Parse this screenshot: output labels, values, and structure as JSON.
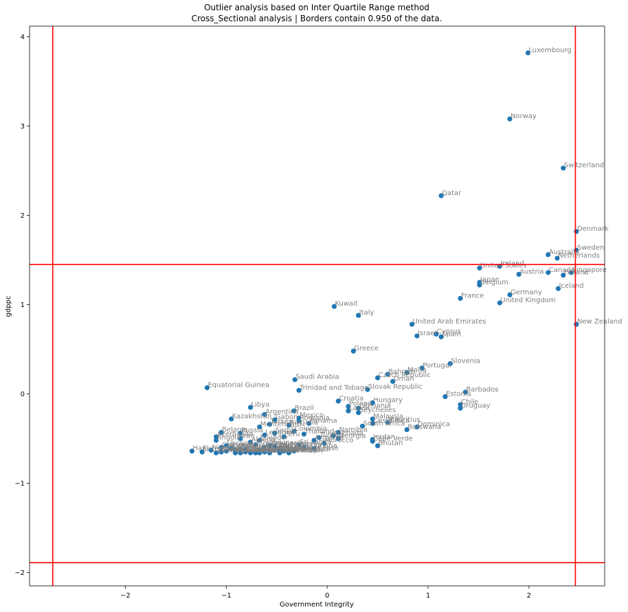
{
  "chart_data": {
    "type": "scatter",
    "title": "Outlier analysis based on Inter Quartile Range method",
    "subtitle": "Cross_Sectional analysis | Borders contain 0.950 of the data.",
    "xlabel": "Government Integrity",
    "ylabel": "gdppc",
    "xlim": [
      -2.95,
      2.75
    ],
    "ylim": [
      -2.15,
      4.12
    ],
    "xticks": [
      -2,
      -1,
      0,
      1,
      2
    ],
    "yticks": [
      -2,
      -1,
      0,
      1,
      2,
      3,
      4
    ],
    "x_tick_labels": [
      "−2",
      "−1",
      "0",
      "1",
      "2"
    ],
    "y_tick_labels": [
      "−2",
      "−1",
      "0",
      "1",
      "2",
      "3",
      "4"
    ],
    "grid": false,
    "point_color": "#1f77b4",
    "border_color": "#ff0000",
    "label_color": "#808080",
    "borders": {
      "x_low": -2.72,
      "x_high": 2.46,
      "y_low": -1.89,
      "y_high": 1.45
    },
    "points": [
      {
        "label": "Luxembourg",
        "x": 1.99,
        "y": 3.82
      },
      {
        "label": "Norway",
        "x": 1.81,
        "y": 3.08
      },
      {
        "label": "Switzerland",
        "x": 2.34,
        "y": 2.53
      },
      {
        "label": "Qatar",
        "x": 1.13,
        "y": 2.22
      },
      {
        "label": "Denmark",
        "x": 2.47,
        "y": 1.82
      },
      {
        "label": "Sweden",
        "x": 2.47,
        "y": 1.61
      },
      {
        "label": "Australia",
        "x": 2.19,
        "y": 1.56
      },
      {
        "label": "Netherlands",
        "x": 2.28,
        "y": 1.52
      },
      {
        "label": "Ireland",
        "x": 1.71,
        "y": 1.43
      },
      {
        "label": "United States",
        "x": 1.51,
        "y": 1.41
      },
      {
        "label": "Canada",
        "x": 2.19,
        "y": 1.36
      },
      {
        "label": "Singapore",
        "x": 2.42,
        "y": 1.36
      },
      {
        "label": "Finland",
        "x": 2.34,
        "y": 1.33
      },
      {
        "label": "Austria",
        "x": 1.9,
        "y": 1.34
      },
      {
        "label": "Japan",
        "x": 1.51,
        "y": 1.25
      },
      {
        "label": "Belgium",
        "x": 1.51,
        "y": 1.22
      },
      {
        "label": "Iceland",
        "x": 2.29,
        "y": 1.18
      },
      {
        "label": "Germany",
        "x": 1.81,
        "y": 1.11
      },
      {
        "label": "France",
        "x": 1.32,
        "y": 1.07
      },
      {
        "label": "United Kingdom",
        "x": 1.71,
        "y": 1.02
      },
      {
        "label": "Kuwait",
        "x": 0.07,
        "y": 0.98
      },
      {
        "label": "Italy",
        "x": 0.31,
        "y": 0.88
      },
      {
        "label": "New Zealand",
        "x": 2.47,
        "y": 0.78
      },
      {
        "label": "United Arab Emirates",
        "x": 0.84,
        "y": 0.78
      },
      {
        "label": "Cyprus",
        "x": 1.08,
        "y": 0.67
      },
      {
        "label": "Israel",
        "x": 0.89,
        "y": 0.65
      },
      {
        "label": "Spain",
        "x": 1.13,
        "y": 0.64
      },
      {
        "label": "Greece",
        "x": 0.26,
        "y": 0.48
      },
      {
        "label": "Slovenia",
        "x": 1.22,
        "y": 0.34
      },
      {
        "label": "Portugal",
        "x": 0.94,
        "y": 0.29
      },
      {
        "label": "Malta",
        "x": 0.79,
        "y": 0.24
      },
      {
        "label": "Bahrain",
        "x": 0.6,
        "y": 0.22
      },
      {
        "label": "Czech Republic",
        "x": 0.5,
        "y": 0.18
      },
      {
        "label": "Oman",
        "x": 0.65,
        "y": 0.14
      },
      {
        "label": "Saudi Arabia",
        "x": -0.32,
        "y": 0.16
      },
      {
        "label": "Equatorial Guinea",
        "x": -1.19,
        "y": 0.07
      },
      {
        "label": "Trinidad and Tobago",
        "x": -0.28,
        "y": 0.04
      },
      {
        "label": "Slovak Republic",
        "x": 0.4,
        "y": 0.05
      },
      {
        "label": "Barbados",
        "x": 1.37,
        "y": 0.02
      },
      {
        "label": "Estonia",
        "x": 1.17,
        "y": -0.03
      },
      {
        "label": "Croatia",
        "x": 0.11,
        "y": -0.08
      },
      {
        "label": "Hungary",
        "x": 0.45,
        "y": -0.1
      },
      {
        "label": "Chile",
        "x": 1.32,
        "y": -0.12
      },
      {
        "label": "Uruguay",
        "x": 1.32,
        "y": -0.16
      },
      {
        "label": "Poland",
        "x": 0.21,
        "y": -0.14
      },
      {
        "label": "Lithuania",
        "x": 0.31,
        "y": -0.16
      },
      {
        "label": "Latvia",
        "x": 0.21,
        "y": -0.19
      },
      {
        "label": "Seychelles",
        "x": 0.31,
        "y": -0.21
      },
      {
        "label": "Brazil",
        "x": -0.33,
        "y": -0.19
      },
      {
        "label": "Libya",
        "x": -0.76,
        "y": -0.15
      },
      {
        "label": "Argentina",
        "x": -0.62,
        "y": -0.23
      },
      {
        "label": "Kazakhstan",
        "x": -0.95,
        "y": -0.28
      },
      {
        "label": "Gabon",
        "x": -0.52,
        "y": -0.29
      },
      {
        "label": "Mexico",
        "x": -0.28,
        "y": -0.27
      },
      {
        "label": "Malaysia",
        "x": 0.45,
        "y": -0.28
      },
      {
        "label": "Mauritius",
        "x": 0.6,
        "y": -0.32
      },
      {
        "label": "Costa Rica",
        "x": 0.45,
        "y": -0.33
      },
      {
        "label": "South Africa",
        "x": 0.35,
        "y": -0.36
      },
      {
        "label": "Dominica",
        "x": 0.89,
        "y": -0.37
      },
      {
        "label": "Botswana",
        "x": 0.79,
        "y": -0.4
      },
      {
        "label": "Montenegro",
        "x": -0.67,
        "y": -0.37
      },
      {
        "label": "Bulgaria",
        "x": -0.38,
        "y": -0.35
      },
      {
        "label": "Romania",
        "x": -0.28,
        "y": -0.3
      },
      {
        "label": "Panama",
        "x": -0.18,
        "y": -0.33
      },
      {
        "label": "Turkey",
        "x": -0.57,
        "y": -0.34
      },
      {
        "label": "Belarus",
        "x": -1.05,
        "y": -0.43
      },
      {
        "label": "Russia",
        "x": -0.86,
        "y": -0.44
      },
      {
        "label": "Serbia",
        "x": -0.52,
        "y": -0.44
      },
      {
        "label": "Namibia",
        "x": 0.11,
        "y": -0.43
      },
      {
        "label": "Colombia",
        "x": -0.33,
        "y": -0.42
      },
      {
        "label": "Thailand",
        "x": -0.23,
        "y": -0.45
      },
      {
        "label": "Azerbaijan",
        "x": -1.1,
        "y": -0.48
      },
      {
        "label": "Lebanon",
        "x": -0.62,
        "y": -0.46
      },
      {
        "label": "Grenada",
        "x": 0.06,
        "y": -0.47
      },
      {
        "label": "Georgia",
        "x": 0.11,
        "y": -0.5
      },
      {
        "label": "Jordan",
        "x": 0.45,
        "y": -0.51
      },
      {
        "label": "Cape Verde",
        "x": 0.45,
        "y": -0.53
      },
      {
        "label": "Bhutan",
        "x": 0.5,
        "y": -0.58
      },
      {
        "label": "Angola",
        "x": -1.1,
        "y": -0.52
      },
      {
        "label": "Iran",
        "x": -0.86,
        "y": -0.5
      },
      {
        "label": "Ecuador",
        "x": -0.67,
        "y": -0.52
      },
      {
        "label": "Algeria",
        "x": -0.76,
        "y": -0.54
      },
      {
        "label": "Peru",
        "x": -0.43,
        "y": -0.48
      },
      {
        "label": "Armenia",
        "x": -0.13,
        "y": -0.52
      },
      {
        "label": "Tunisia",
        "x": -0.08,
        "y": -0.49
      },
      {
        "label": "Morocco",
        "x": -0.03,
        "y": -0.55
      },
      {
        "label": "Indonesia",
        "x": -0.57,
        "y": -0.58
      },
      {
        "label": "Egypt",
        "x": -0.71,
        "y": -0.57
      },
      {
        "label": "Ghana",
        "x": -0.13,
        "y": -0.61
      },
      {
        "label": "India",
        "x": -0.23,
        "y": -0.6
      },
      {
        "label": "Sri Lanka",
        "x": -0.28,
        "y": -0.57
      },
      {
        "label": "Ukraine",
        "x": -1.0,
        "y": -0.58
      },
      {
        "label": "Paraguay",
        "x": -0.62,
        "y": -0.6
      },
      {
        "label": "Philippines",
        "x": -0.52,
        "y": -0.59
      },
      {
        "label": "Vietnam",
        "x": -0.47,
        "y": -0.61
      },
      {
        "label": "Bolivia",
        "x": -0.81,
        "y": -0.62
      },
      {
        "label": "Honduras",
        "x": -0.91,
        "y": -0.63
      },
      {
        "label": "Nigeria",
        "x": -1.15,
        "y": -0.63
      },
      {
        "label": "Pakistan",
        "x": -0.86,
        "y": -0.62
      },
      {
        "label": "Cameroon",
        "x": -1.05,
        "y": -0.6
      },
      {
        "label": "Kenya",
        "x": -0.95,
        "y": -0.61
      },
      {
        "label": "Zambia",
        "x": -0.76,
        "y": -0.65
      },
      {
        "label": "Senegal",
        "x": -0.43,
        "y": -0.64
      },
      {
        "label": "Mali",
        "x": -0.52,
        "y": -0.63
      },
      {
        "label": "Burkina Faso",
        "x": -0.33,
        "y": -0.64
      },
      {
        "label": "Madagascar",
        "x": -0.38,
        "y": -0.65
      },
      {
        "label": "Tanzania",
        "x": -0.67,
        "y": -0.63
      },
      {
        "label": "Bangladesh",
        "x": -0.57,
        "y": -0.64
      },
      {
        "label": "Nepal",
        "x": -0.47,
        "y": -0.64
      },
      {
        "label": "Uganda",
        "x": -0.62,
        "y": -0.65
      },
      {
        "label": "Guinea",
        "x": -0.81,
        "y": -0.65
      },
      {
        "label": "Chad",
        "x": -1.0,
        "y": -0.64
      },
      {
        "label": "Congo",
        "x": -1.05,
        "y": -0.65
      },
      {
        "label": "Haiti",
        "x": -1.34,
        "y": -0.64
      },
      {
        "label": "Eritrea",
        "x": -1.24,
        "y": -0.65
      },
      {
        "label": "Zimbabwe",
        "x": -1.1,
        "y": -0.66
      },
      {
        "label": "Myanmar",
        "x": -0.91,
        "y": -0.66
      },
      {
        "label": "Sierra Leone",
        "x": -0.71,
        "y": -0.66
      },
      {
        "label": "Malawi",
        "x": -0.76,
        "y": -0.66
      },
      {
        "label": "Niger",
        "x": -0.67,
        "y": -0.66
      },
      {
        "label": "Ethiopia",
        "x": -0.57,
        "y": -0.66
      },
      {
        "label": "Mozambique",
        "x": -0.47,
        "y": -0.66
      },
      {
        "label": "Rwanda",
        "x": -0.38,
        "y": -0.66
      },
      {
        "label": "Liberia",
        "x": -0.86,
        "y": -0.66
      }
    ]
  }
}
